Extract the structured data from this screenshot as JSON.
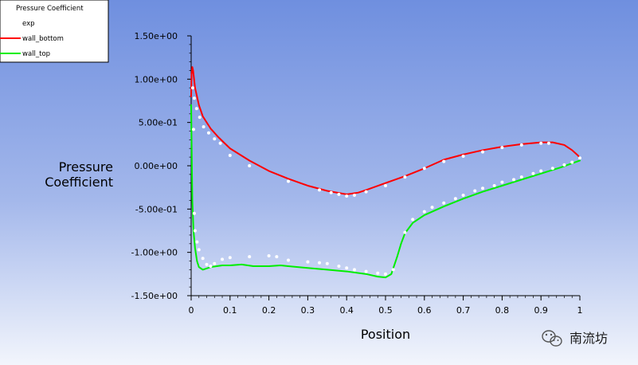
{
  "chart_data": {
    "type": "line",
    "title": "",
    "xlabel": "Position",
    "ylabel_lines": [
      "Pressure",
      "Coefficient"
    ],
    "xlim": [
      0,
      1
    ],
    "ylim": [
      -1.5,
      1.5
    ],
    "x_ticks": [
      0,
      0.1,
      0.2,
      0.3,
      0.4,
      0.5,
      0.6,
      0.7,
      0.8,
      0.9,
      1
    ],
    "x_tick_labels": [
      "0",
      "0.1",
      "0.2",
      "0.3",
      "0.4",
      "0.5",
      "0.6",
      "0.7",
      "0.8",
      "0.9",
      "1"
    ],
    "y_ticks": [
      1.5,
      1.0,
      0.5,
      0.0,
      -0.5,
      -1.0,
      -1.5
    ],
    "y_tick_labels": [
      "1.50e+00",
      "1.00e+00",
      "5.00e-01",
      "0.00e+00",
      "-5.00e-01",
      "-1.00e+00",
      "-1.50e+00"
    ],
    "grid": false,
    "legend": {
      "title": "Pressure Coefficient",
      "placement": "top-left",
      "entries": [
        "exp",
        "wall_bottom",
        "wall_top"
      ]
    },
    "series": [
      {
        "name": "exp",
        "style": "markers",
        "color": "#ffffff",
        "points": [
          [
            0.004,
            0.9
          ],
          [
            0.008,
            0.78
          ],
          [
            0.014,
            0.66
          ],
          [
            0.022,
            0.56
          ],
          [
            0.032,
            0.45
          ],
          [
            0.045,
            0.38
          ],
          [
            0.06,
            0.31
          ],
          [
            0.075,
            0.26
          ],
          [
            0.1,
            0.12
          ],
          [
            0.15,
            0.0
          ],
          [
            0.25,
            -0.18
          ],
          [
            0.33,
            -0.28
          ],
          [
            0.36,
            -0.31
          ],
          [
            0.38,
            -0.33
          ],
          [
            0.4,
            -0.35
          ],
          [
            0.42,
            -0.34
          ],
          [
            0.45,
            -0.3
          ],
          [
            0.5,
            -0.23
          ],
          [
            0.55,
            -0.13
          ],
          [
            0.6,
            -0.03
          ],
          [
            0.65,
            0.05
          ],
          [
            0.7,
            0.11
          ],
          [
            0.75,
            0.16
          ],
          [
            0.8,
            0.21
          ],
          [
            0.85,
            0.24
          ],
          [
            0.9,
            0.26
          ],
          [
            0.92,
            0.26
          ],
          [
            0.006,
            0.42
          ],
          [
            0.008,
            -0.55
          ],
          [
            0.01,
            -0.75
          ],
          [
            0.015,
            -0.88
          ],
          [
            0.02,
            -0.97
          ],
          [
            0.03,
            -1.07
          ],
          [
            0.04,
            -1.14
          ],
          [
            0.05,
            -1.16
          ],
          [
            0.06,
            -1.13
          ],
          [
            0.08,
            -1.08
          ],
          [
            0.1,
            -1.06
          ],
          [
            0.15,
            -1.05
          ],
          [
            0.2,
            -1.04
          ],
          [
            0.22,
            -1.05
          ],
          [
            0.25,
            -1.09
          ],
          [
            0.3,
            -1.11
          ],
          [
            0.33,
            -1.12
          ],
          [
            0.35,
            -1.13
          ],
          [
            0.38,
            -1.16
          ],
          [
            0.4,
            -1.18
          ],
          [
            0.42,
            -1.2
          ],
          [
            0.45,
            -1.22
          ],
          [
            0.48,
            -1.24
          ],
          [
            0.5,
            -1.25
          ],
          [
            0.52,
            -1.2
          ],
          [
            0.55,
            -0.77
          ],
          [
            0.57,
            -0.62
          ],
          [
            0.6,
            -0.53
          ],
          [
            0.62,
            -0.48
          ],
          [
            0.65,
            -0.43
          ],
          [
            0.68,
            -0.38
          ],
          [
            0.7,
            -0.34
          ],
          [
            0.73,
            -0.29
          ],
          [
            0.75,
            -0.26
          ],
          [
            0.78,
            -0.23
          ],
          [
            0.8,
            -0.19
          ],
          [
            0.83,
            -0.16
          ],
          [
            0.85,
            -0.13
          ],
          [
            0.88,
            -0.09
          ],
          [
            0.9,
            -0.06
          ],
          [
            0.93,
            -0.03
          ],
          [
            0.96,
            0.01
          ],
          [
            0.98,
            0.04
          ],
          [
            1.0,
            0.09
          ]
        ]
      },
      {
        "name": "wall_bottom",
        "style": "line",
        "color": "#ff0000",
        "points": [
          [
            0.0,
            0.8
          ],
          [
            0.001,
            1.05
          ],
          [
            0.003,
            1.14
          ],
          [
            0.005,
            1.1
          ],
          [
            0.01,
            0.9
          ],
          [
            0.02,
            0.7
          ],
          [
            0.03,
            0.57
          ],
          [
            0.05,
            0.43
          ],
          [
            0.07,
            0.33
          ],
          [
            0.1,
            0.2
          ],
          [
            0.15,
            0.06
          ],
          [
            0.2,
            -0.06
          ],
          [
            0.25,
            -0.15
          ],
          [
            0.3,
            -0.23
          ],
          [
            0.35,
            -0.29
          ],
          [
            0.4,
            -0.33
          ],
          [
            0.43,
            -0.31
          ],
          [
            0.45,
            -0.28
          ],
          [
            0.5,
            -0.2
          ],
          [
            0.55,
            -0.12
          ],
          [
            0.6,
            -0.03
          ],
          [
            0.65,
            0.07
          ],
          [
            0.7,
            0.13
          ],
          [
            0.75,
            0.18
          ],
          [
            0.8,
            0.22
          ],
          [
            0.85,
            0.25
          ],
          [
            0.9,
            0.27
          ],
          [
            0.93,
            0.27
          ],
          [
            0.96,
            0.24
          ],
          [
            0.98,
            0.18
          ],
          [
            0.995,
            0.12
          ],
          [
            1.0,
            0.09
          ]
        ]
      },
      {
        "name": "wall_top",
        "style": "line",
        "color": "#00ee00",
        "points": [
          [
            0.0,
            0.7
          ],
          [
            0.001,
            0.3
          ],
          [
            0.003,
            -0.4
          ],
          [
            0.006,
            -0.75
          ],
          [
            0.01,
            -0.95
          ],
          [
            0.015,
            -1.1
          ],
          [
            0.02,
            -1.17
          ],
          [
            0.03,
            -1.2
          ],
          [
            0.05,
            -1.17
          ],
          [
            0.08,
            -1.15
          ],
          [
            0.1,
            -1.15
          ],
          [
            0.13,
            -1.14
          ],
          [
            0.16,
            -1.16
          ],
          [
            0.2,
            -1.16
          ],
          [
            0.23,
            -1.15
          ],
          [
            0.25,
            -1.16
          ],
          [
            0.3,
            -1.18
          ],
          [
            0.35,
            -1.2
          ],
          [
            0.4,
            -1.22
          ],
          [
            0.45,
            -1.25
          ],
          [
            0.48,
            -1.28
          ],
          [
            0.5,
            -1.29
          ],
          [
            0.515,
            -1.25
          ],
          [
            0.53,
            -1.05
          ],
          [
            0.54,
            -0.9
          ],
          [
            0.55,
            -0.78
          ],
          [
            0.57,
            -0.66
          ],
          [
            0.6,
            -0.57
          ],
          [
            0.65,
            -0.47
          ],
          [
            0.7,
            -0.38
          ],
          [
            0.75,
            -0.3
          ],
          [
            0.8,
            -0.23
          ],
          [
            0.85,
            -0.16
          ],
          [
            0.9,
            -0.09
          ],
          [
            0.95,
            -0.02
          ],
          [
            1.0,
            0.06
          ]
        ]
      }
    ]
  },
  "watermark": {
    "label": "南流坊",
    "icon": "wechat-icon"
  },
  "colors": {
    "background_top": "#6f8fdf",
    "background_bottom": "#f0f3fb",
    "axis": "#000000",
    "legend_bg": "#ffffff",
    "exp_marker": "#ffffff",
    "wall_bottom": "#ff0000",
    "wall_top": "#00ee00"
  }
}
